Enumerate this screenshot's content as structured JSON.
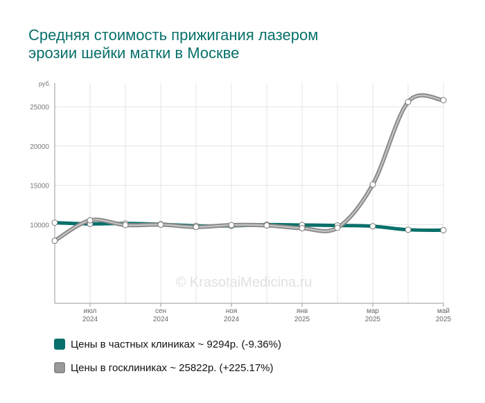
{
  "title": "Средняя стоимость прижигания лазером\nэрозии шейки матки  в Москве",
  "watermark": "© KrasotaiMedicina.ru",
  "colors": {
    "private": "#08706a",
    "public": "#9a9a9a"
  },
  "chart_data": {
    "type": "line",
    "y_unit": "руб.",
    "ylim": [
      0,
      28000
    ],
    "y_ticks": [
      "10000",
      "15000",
      "20000",
      "25000"
    ],
    "y_tick_values": [
      10000,
      15000,
      20000,
      25000
    ],
    "grid": true,
    "x": [
      "2024-06",
      "2024-07",
      "2024-08",
      "2024-09",
      "2024-10",
      "2024-11",
      "2024-12",
      "2025-01",
      "2025-02",
      "2025-03",
      "2025-04",
      "2025-05"
    ],
    "x_tick_labels": [
      {
        "month": "июл",
        "year": "2024",
        "index": 1
      },
      {
        "month": "сен",
        "year": "2024",
        "index": 3
      },
      {
        "month": "ноя",
        "year": "2024",
        "index": 5
      },
      {
        "month": "янв",
        "year": "2025",
        "index": 7
      },
      {
        "month": "мар",
        "year": "2025",
        "index": 9
      },
      {
        "month": "май",
        "year": "2025",
        "index": 11
      }
    ],
    "legend_position": "bottom-left",
    "series": [
      {
        "name": "Цены в частных клиниках ~ 9294р. (-9.36%)",
        "key": "private",
        "values": [
          10250,
          10100,
          10150,
          10050,
          9850,
          9850,
          10000,
          9950,
          9900,
          9800,
          9350,
          9294
        ]
      },
      {
        "name": "Цены в госклиниках ~ 25822р. (+225.17%)",
        "key": "public",
        "values": [
          7950,
          10550,
          9950,
          10000,
          9700,
          9950,
          9900,
          9550,
          9600,
          15100,
          25600,
          25822
        ]
      }
    ]
  }
}
